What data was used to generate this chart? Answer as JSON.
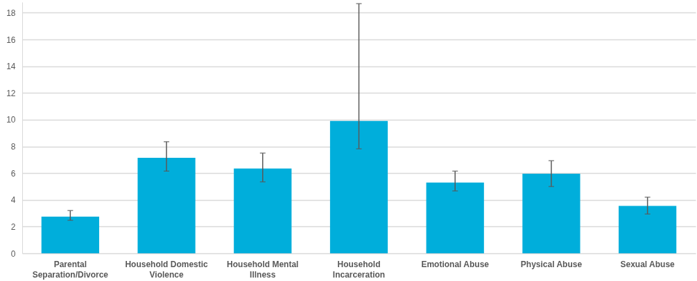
{
  "chart_data": {
    "type": "bar",
    "categories": [
      "Parental Separation/Divorce",
      "Household Domestic Violence",
      "Household Mental Illness",
      "Household Incarceration",
      "Emotional Abuse",
      "Physical Abuse",
      "Sexual Abuse"
    ],
    "values": [
      2.75,
      7.15,
      6.35,
      9.9,
      5.3,
      5.95,
      3.55
    ],
    "errors": [
      [
        2.47,
        3.2
      ],
      [
        6.15,
        8.35
      ],
      [
        5.35,
        7.5
      ],
      [
        7.82,
        18.68
      ],
      [
        4.67,
        6.15
      ],
      [
        5.0,
        6.93
      ],
      [
        2.94,
        4.2
      ]
    ],
    "color": "#00aedb",
    "ylim": [
      0,
      18.8
    ],
    "yticks": [
      0,
      2,
      4,
      6,
      8,
      10,
      12,
      14,
      16,
      18
    ],
    "grid": "y"
  }
}
